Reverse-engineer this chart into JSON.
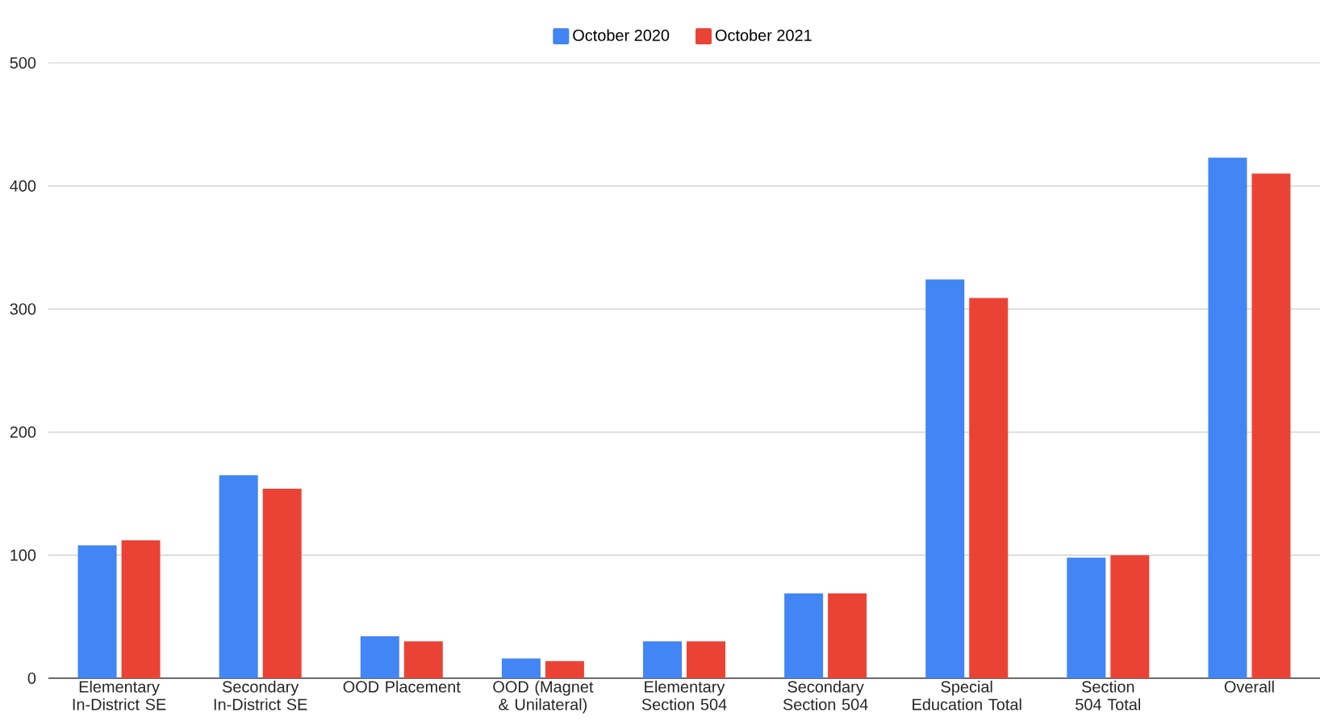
{
  "chart_data": {
    "type": "bar",
    "categories": [
      "Elementary In-District SE",
      "Secondary In-District SE",
      "OOD Placement",
      "OOD (Magnet & Unilateral)",
      "Elementary Section 504",
      "Secondary Section 504",
      "Special Education Total",
      "Section 504 Total",
      "Overall"
    ],
    "series": [
      {
        "name": "October 2020",
        "color": "#4285f4",
        "values": [
          108,
          165,
          34,
          16,
          30,
          69,
          324,
          98,
          423
        ]
      },
      {
        "name": "October 2021",
        "color": "#ea4335",
        "values": [
          112,
          154,
          30,
          14,
          30,
          69,
          309,
          100,
          410
        ]
      }
    ],
    "ylim": [
      0,
      500
    ],
    "yticks": [
      0,
      100,
      200,
      300,
      400,
      500
    ],
    "grid": "y",
    "legend": "top"
  }
}
